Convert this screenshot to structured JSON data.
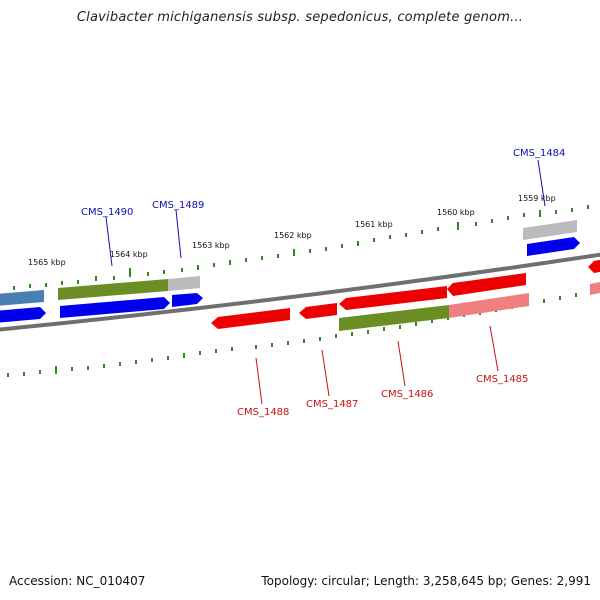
{
  "title": "Clavibacter michiganensis subsp. sepedonicus, complete genom...",
  "footer": {
    "accession": "Accession: NC_010407",
    "topology": "Topology: circular; Length: 3,258,645 bp; Genes: 2,991"
  },
  "kbp_labels": [
    "1565 kbp",
    "1564 kbp",
    "1563 kbp",
    "1562 kbp",
    "1561 kbp",
    "1560 kbp",
    "1559 kbp"
  ],
  "genes_top": [
    "CMS_1490",
    "CMS_1489",
    "CMS_1484"
  ],
  "genes_bottom": [
    "CMS_1488",
    "CMS_1487",
    "CMS_1486",
    "CMS_1485"
  ],
  "colors": {
    "forward_cds": "#0000ee",
    "reverse_cds": "#ee0000",
    "gene_olive": "#6a8e23",
    "pseudo_gray": "#bbbbbb",
    "tick_green": "#2e8b22",
    "backbone": "#777777"
  }
}
